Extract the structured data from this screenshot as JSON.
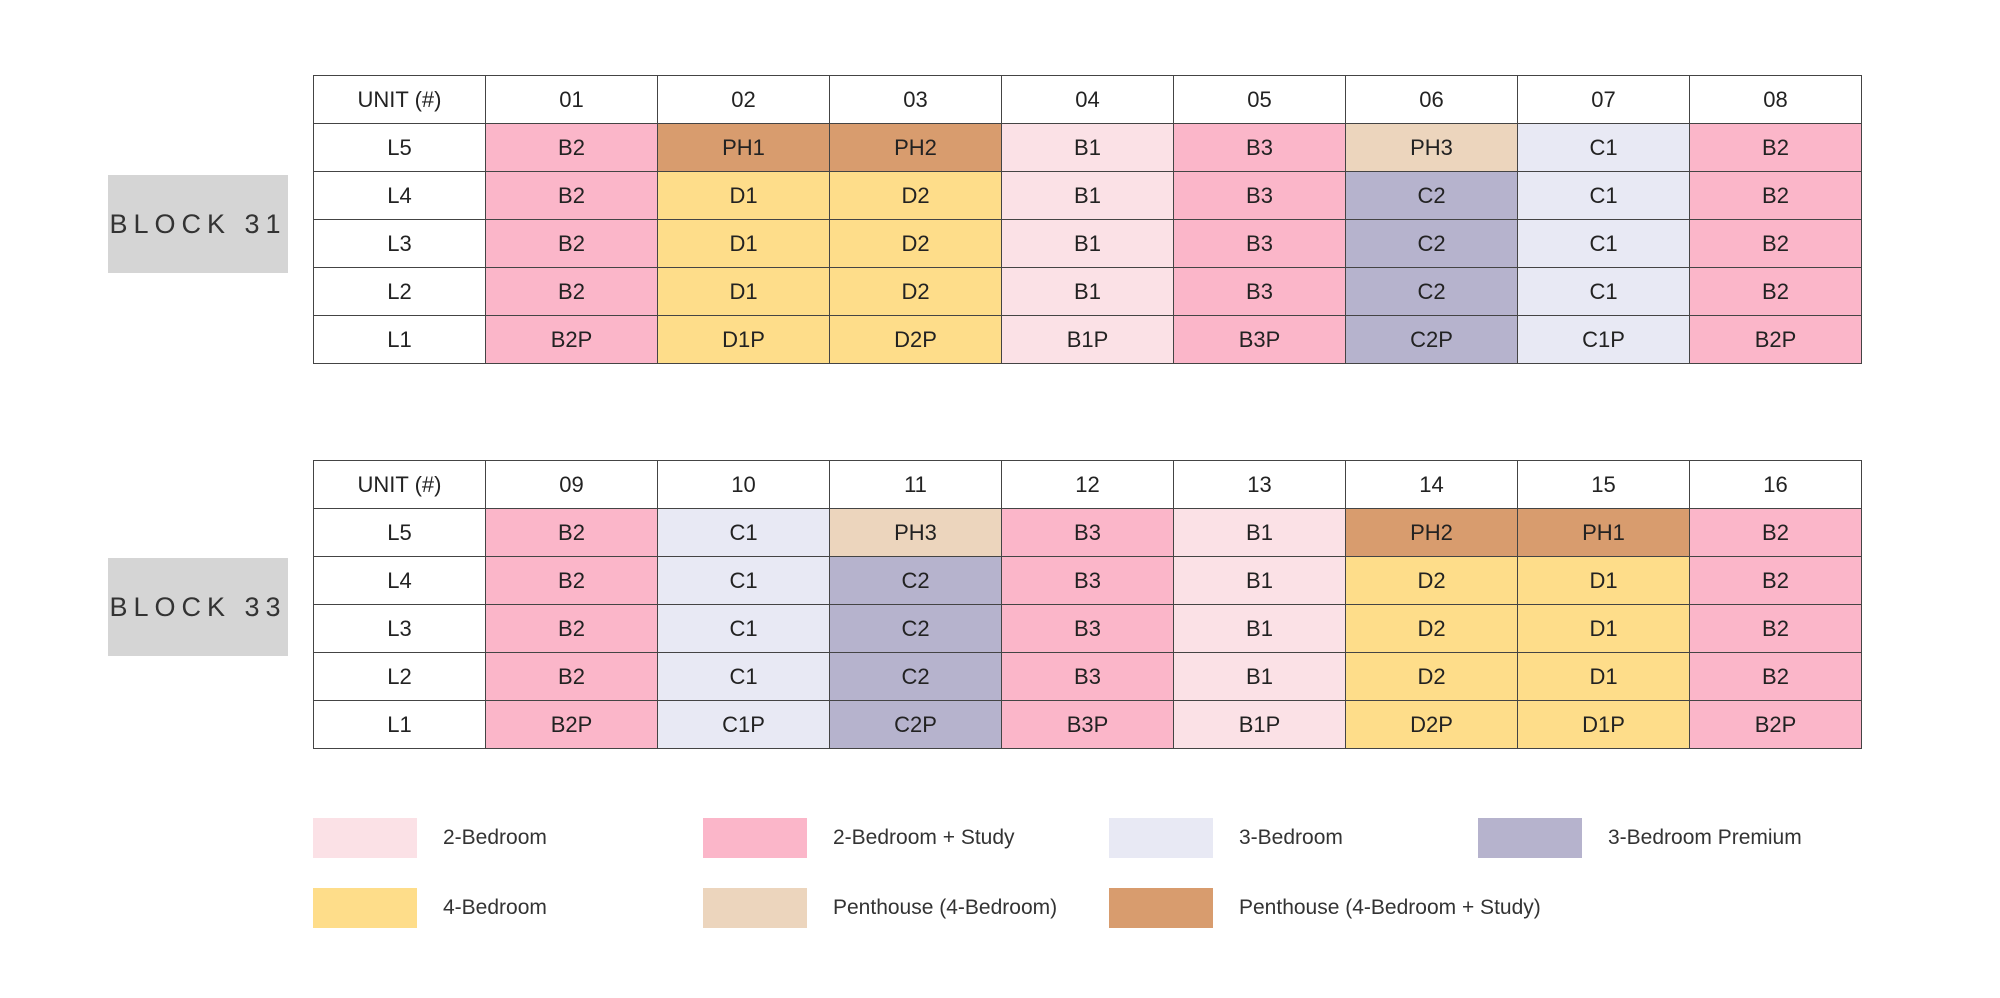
{
  "colors": {
    "B": "#fbe1e6",
    "B_study": "#fbb6c9",
    "C": "#e8e9f4",
    "C_premium": "#b6b3cd",
    "D": "#fedd8a",
    "PH3": "#ecd5bd",
    "PH_study": "#d89c6e"
  },
  "blocks": [
    {
      "label": "BLOCK 31",
      "header": [
        "UNIT (#)",
        "01",
        "02",
        "03",
        "04",
        "05",
        "06",
        "07",
        "08"
      ],
      "rows": [
        {
          "level": "L5",
          "cells": [
            {
              "t": "B2",
              "c": "B_study"
            },
            {
              "t": "PH1",
              "c": "PH_study"
            },
            {
              "t": "PH2",
              "c": "PH_study"
            },
            {
              "t": "B1",
              "c": "B"
            },
            {
              "t": "B3",
              "c": "B_study"
            },
            {
              "t": "PH3",
              "c": "PH3"
            },
            {
              "t": "C1",
              "c": "C"
            },
            {
              "t": "B2",
              "c": "B_study"
            }
          ]
        },
        {
          "level": "L4",
          "cells": [
            {
              "t": "B2",
              "c": "B_study"
            },
            {
              "t": "D1",
              "c": "D"
            },
            {
              "t": "D2",
              "c": "D"
            },
            {
              "t": "B1",
              "c": "B"
            },
            {
              "t": "B3",
              "c": "B_study"
            },
            {
              "t": "C2",
              "c": "C_premium"
            },
            {
              "t": "C1",
              "c": "C"
            },
            {
              "t": "B2",
              "c": "B_study"
            }
          ]
        },
        {
          "level": "L3",
          "cells": [
            {
              "t": "B2",
              "c": "B_study"
            },
            {
              "t": "D1",
              "c": "D"
            },
            {
              "t": "D2",
              "c": "D"
            },
            {
              "t": "B1",
              "c": "B"
            },
            {
              "t": "B3",
              "c": "B_study"
            },
            {
              "t": "C2",
              "c": "C_premium"
            },
            {
              "t": "C1",
              "c": "C"
            },
            {
              "t": "B2",
              "c": "B_study"
            }
          ]
        },
        {
          "level": "L2",
          "cells": [
            {
              "t": "B2",
              "c": "B_study"
            },
            {
              "t": "D1",
              "c": "D"
            },
            {
              "t": "D2",
              "c": "D"
            },
            {
              "t": "B1",
              "c": "B"
            },
            {
              "t": "B3",
              "c": "B_study"
            },
            {
              "t": "C2",
              "c": "C_premium"
            },
            {
              "t": "C1",
              "c": "C"
            },
            {
              "t": "B2",
              "c": "B_study"
            }
          ]
        },
        {
          "level": "L1",
          "cells": [
            {
              "t": "B2P",
              "c": "B_study"
            },
            {
              "t": "D1P",
              "c": "D"
            },
            {
              "t": "D2P",
              "c": "D"
            },
            {
              "t": "B1P",
              "c": "B"
            },
            {
              "t": "B3P",
              "c": "B_study"
            },
            {
              "t": "C2P",
              "c": "C_premium"
            },
            {
              "t": "C1P",
              "c": "C"
            },
            {
              "t": "B2P",
              "c": "B_study"
            }
          ]
        }
      ]
    },
    {
      "label": "BLOCK 33",
      "header": [
        "UNIT (#)",
        "09",
        "10",
        "11",
        "12",
        "13",
        "14",
        "15",
        "16"
      ],
      "rows": [
        {
          "level": "L5",
          "cells": [
            {
              "t": "B2",
              "c": "B_study"
            },
            {
              "t": "C1",
              "c": "C"
            },
            {
              "t": "PH3",
              "c": "PH3"
            },
            {
              "t": "B3",
              "c": "B_study"
            },
            {
              "t": "B1",
              "c": "B"
            },
            {
              "t": "PH2",
              "c": "PH_study"
            },
            {
              "t": "PH1",
              "c": "PH_study"
            },
            {
              "t": "B2",
              "c": "B_study"
            }
          ]
        },
        {
          "level": "L4",
          "cells": [
            {
              "t": "B2",
              "c": "B_study"
            },
            {
              "t": "C1",
              "c": "C"
            },
            {
              "t": "C2",
              "c": "C_premium"
            },
            {
              "t": "B3",
              "c": "B_study"
            },
            {
              "t": "B1",
              "c": "B"
            },
            {
              "t": "D2",
              "c": "D"
            },
            {
              "t": "D1",
              "c": "D"
            },
            {
              "t": "B2",
              "c": "B_study"
            }
          ]
        },
        {
          "level": "L3",
          "cells": [
            {
              "t": "B2",
              "c": "B_study"
            },
            {
              "t": "C1",
              "c": "C"
            },
            {
              "t": "C2",
              "c": "C_premium"
            },
            {
              "t": "B3",
              "c": "B_study"
            },
            {
              "t": "B1",
              "c": "B"
            },
            {
              "t": "D2",
              "c": "D"
            },
            {
              "t": "D1",
              "c": "D"
            },
            {
              "t": "B2",
              "c": "B_study"
            }
          ]
        },
        {
          "level": "L2",
          "cells": [
            {
              "t": "B2",
              "c": "B_study"
            },
            {
              "t": "C1",
              "c": "C"
            },
            {
              "t": "C2",
              "c": "C_premium"
            },
            {
              "t": "B3",
              "c": "B_study"
            },
            {
              "t": "B1",
              "c": "B"
            },
            {
              "t": "D2",
              "c": "D"
            },
            {
              "t": "D1",
              "c": "D"
            },
            {
              "t": "B2",
              "c": "B_study"
            }
          ]
        },
        {
          "level": "L1",
          "cells": [
            {
              "t": "B2P",
              "c": "B_study"
            },
            {
              "t": "C1P",
              "c": "C"
            },
            {
              "t": "C2P",
              "c": "C_premium"
            },
            {
              "t": "B3P",
              "c": "B_study"
            },
            {
              "t": "B1P",
              "c": "B"
            },
            {
              "t": "D2P",
              "c": "D"
            },
            {
              "t": "D1P",
              "c": "D"
            },
            {
              "t": "B2P",
              "c": "B_study"
            }
          ]
        }
      ]
    }
  ],
  "legend": [
    {
      "label": "2-Bedroom",
      "c": "B"
    },
    {
      "label": "2-Bedroom + Study",
      "c": "B_study"
    },
    {
      "label": "3-Bedroom",
      "c": "C"
    },
    {
      "label": "3-Bedroom Premium",
      "c": "C_premium"
    },
    {
      "label": "4-Bedroom",
      "c": "D"
    },
    {
      "label": "Penthouse (4-Bedroom)",
      "c": "PH3"
    },
    {
      "label": "Penthouse (4-Bedroom + Study)",
      "c": "PH_study"
    }
  ]
}
